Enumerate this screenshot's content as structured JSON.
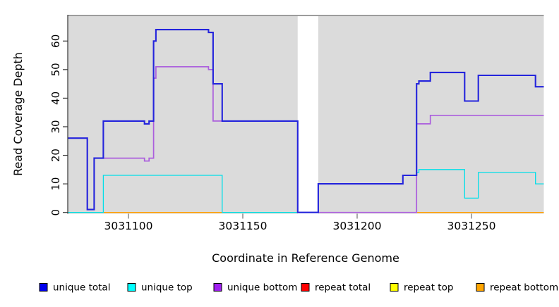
{
  "chart_data": {
    "type": "line",
    "subtype": "step-coverage",
    "title": "",
    "xlabel": "Coordinate in Reference Genome",
    "ylabel": "Read Coverage Depth",
    "x_ticks": [
      3031100,
      3031150,
      3031200,
      3031250
    ],
    "x_tick_labels": [
      "3031100",
      "3031150",
      "3031200",
      "3031250"
    ],
    "y_ticks": [
      0,
      10,
      20,
      30,
      40,
      50,
      60
    ],
    "y_tick_labels": [
      "0",
      "10",
      "20",
      "30",
      "40",
      "50",
      "60"
    ],
    "xlim": [
      3031073,
      3031282
    ],
    "ylim": [
      0,
      69
    ],
    "grid": false,
    "plot_background": "#DBDBDB",
    "gap": {
      "start": 3031174,
      "end": 3031183
    },
    "series": [
      {
        "name": "repeat total",
        "color": "#E02222",
        "line_width": 1.4,
        "segments": [
          [
            [
              3031073,
              0
            ],
            [
              3031174,
              0
            ]
          ],
          [
            [
              3031183,
              0
            ],
            [
              3031282,
              0
            ]
          ]
        ]
      },
      {
        "name": "repeat top",
        "color": "#F0E800",
        "line_width": 1.4,
        "segments": [
          [
            [
              3031073,
              0
            ],
            [
              3031174,
              0
            ]
          ],
          [
            [
              3031183,
              0
            ],
            [
              3031282,
              0
            ]
          ]
        ]
      },
      {
        "name": "repeat bottom",
        "color": "#FF9D00",
        "line_width": 1.5,
        "segments": [
          [
            [
              3031073,
              0
            ],
            [
              3031174,
              0
            ]
          ],
          [
            [
              3031183,
              0
            ],
            [
              3031282,
              0
            ]
          ]
        ]
      },
      {
        "name": "unique bottom",
        "color": "#AB5EDD",
        "line_width": 1.7,
        "segments": [
          [
            [
              3031073,
              26
            ],
            [
              3031082,
              1
            ],
            [
              3031085,
              19
            ],
            [
              3031107,
              18
            ],
            [
              3031109,
              19
            ],
            [
              3031111,
              47
            ],
            [
              3031112,
              51
            ],
            [
              3031135,
              50
            ],
            [
              3031137,
              32
            ],
            [
              3031174,
              0
            ],
            [
              3031226,
              31
            ],
            [
              3031232,
              34
            ],
            [
              3031282,
              34
            ]
          ]
        ]
      },
      {
        "name": "unique top",
        "color": "#00DEE8",
        "line_width": 1.3,
        "segments": [
          [
            [
              3031073,
              0
            ],
            [
              3031089,
              13
            ],
            [
              3031141,
              0
            ],
            [
              3031183,
              10
            ],
            [
              3031220,
              13
            ],
            [
              3031226,
              14
            ],
            [
              3031227,
              15
            ],
            [
              3031247,
              5
            ],
            [
              3031253,
              14
            ],
            [
              3031278,
              10
            ],
            [
              3031282,
              10
            ]
          ]
        ]
      },
      {
        "name": "unique total",
        "color": "#2424DC",
        "line_width": 2.1,
        "segments": [
          [
            [
              3031073,
              26
            ],
            [
              3031082,
              1
            ],
            [
              3031085,
              19
            ],
            [
              3031089,
              32
            ],
            [
              3031107,
              31
            ],
            [
              3031109,
              32
            ],
            [
              3031111,
              60
            ],
            [
              3031112,
              64
            ],
            [
              3031135,
              63
            ],
            [
              3031137,
              45
            ],
            [
              3031141,
              32
            ],
            [
              3031174,
              0
            ],
            [
              3031183,
              10
            ],
            [
              3031220,
              13
            ],
            [
              3031226,
              45
            ],
            [
              3031227,
              46
            ],
            [
              3031232,
              49
            ],
            [
              3031247,
              39
            ],
            [
              3031253,
              48
            ],
            [
              3031278,
              44
            ],
            [
              3031282,
              44
            ]
          ]
        ]
      }
    ],
    "legend": {
      "position": "bottom",
      "items": [
        {
          "label": "unique total",
          "color": "#0000EE"
        },
        {
          "label": "unique top",
          "color": "#00FFFF"
        },
        {
          "label": "unique bottom",
          "color": "#A020F0"
        },
        {
          "label": "repeat total",
          "color": "#FF0000"
        },
        {
          "label": "repeat top",
          "color": "#FFFF00"
        },
        {
          "label": "repeat bottom",
          "color": "#FFA500"
        }
      ]
    }
  }
}
